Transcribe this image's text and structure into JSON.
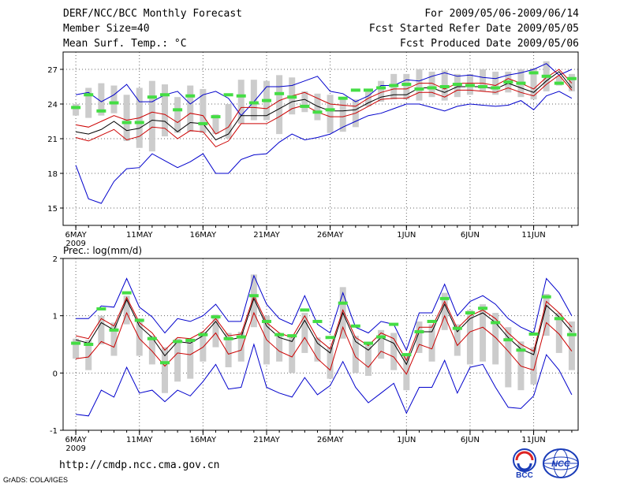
{
  "header": {
    "title": "DERF/NCC/BCC Monthly Forecast",
    "member_size": "Member Size=40",
    "variable": "Mean Surf. Temp.: °C",
    "fcst_range": "For 2009/05/06-2009/06/14",
    "start_date": "Fcst Started Refer Date 2009/05/05",
    "produced_date": "Fcst Produced Date 2009/05/06"
  },
  "footer": {
    "url": "http://cmdp.ncc.cma.gov.cn",
    "grads_credit": "GrADS: COLA/IGES",
    "logo_bcc": "BCC",
    "logo_ncc": "NCC"
  },
  "colors": {
    "ensemble_range": "#0000cc",
    "spread": "#cc0000",
    "mean": "#000000",
    "box": "#cccccc",
    "observed": "#44dd44",
    "grid": "#666666"
  },
  "chart_data": [
    {
      "type": "line",
      "title": "Mean Surf. Temp.: °C",
      "x_start_day": "2009-05-06",
      "n_days": 40,
      "xtick_labels": [
        {
          "day": 0,
          "label": "6MAY",
          "sub": "2009"
        },
        {
          "day": 5,
          "label": "11MAY"
        },
        {
          "day": 10,
          "label": "16MAY"
        },
        {
          "day": 15,
          "label": "21MAY"
        },
        {
          "day": 20,
          "label": "26MAY"
        },
        {
          "day": 26,
          "label": "1JUN"
        },
        {
          "day": 31,
          "label": "6JUN"
        },
        {
          "day": 36,
          "label": "11JUN"
        }
      ],
      "ylim": [
        13.5,
        28.5
      ],
      "yticks": [
        15,
        18,
        21,
        24,
        27
      ],
      "grid": true,
      "series": [
        {
          "name": "ensemble max",
          "role": "max",
          "values": [
            24.8,
            25.0,
            24.2,
            24.8,
            25.7,
            24.2,
            24.2,
            24.8,
            25.1,
            24.0,
            24.8,
            25.1,
            24.5,
            23.0,
            24.2,
            25.5,
            25.5,
            25.6,
            26.0,
            26.4,
            25.1,
            24.9,
            24.2,
            24.7,
            25.6,
            25.6,
            26.1,
            26.0,
            26.4,
            26.7,
            26.4,
            26.5,
            26.3,
            26.2,
            26.5,
            26.7,
            27.0,
            27.5,
            26.5,
            27.0
          ]
        },
        {
          "name": "upper spread",
          "role": "spread",
          "values": [
            22.2,
            22.0,
            22.5,
            23.0,
            22.6,
            22.8,
            23.3,
            23.1,
            22.4,
            23.2,
            23.0,
            21.4,
            22.0,
            23.7,
            23.7,
            23.6,
            24.3,
            24.7,
            25.0,
            24.5,
            24.0,
            23.9,
            23.8,
            24.5,
            25.0,
            25.3,
            25.3,
            25.8,
            25.8,
            25.3,
            25.8,
            25.8,
            25.8,
            25.6,
            26.2,
            25.8,
            25.3,
            26.3,
            27.0,
            25.8
          ]
        },
        {
          "name": "ensemble mean",
          "role": "mean",
          "values": [
            21.6,
            21.4,
            21.8,
            22.5,
            21.7,
            21.9,
            22.6,
            22.5,
            21.6,
            22.4,
            22.3,
            20.9,
            21.4,
            23.0,
            23.0,
            23.0,
            23.6,
            24.2,
            24.4,
            23.8,
            23.4,
            23.4,
            23.5,
            24.1,
            24.6,
            24.8,
            24.8,
            25.4,
            25.4,
            25.0,
            25.5,
            25.5,
            25.5,
            25.3,
            25.8,
            25.4,
            25.0,
            26.0,
            26.8,
            25.4
          ]
        },
        {
          "name": "lower spread",
          "role": "spread",
          "values": [
            21.1,
            20.8,
            21.3,
            21.8,
            20.9,
            21.2,
            22.0,
            21.9,
            21.0,
            21.7,
            21.6,
            20.3,
            20.8,
            22.3,
            22.3,
            22.3,
            22.9,
            23.6,
            23.9,
            23.3,
            22.9,
            22.9,
            23.2,
            23.8,
            24.4,
            24.5,
            24.5,
            25.0,
            25.0,
            24.6,
            25.2,
            25.2,
            25.1,
            25.0,
            25.4,
            25.0,
            24.7,
            25.7,
            26.5,
            25.2
          ]
        },
        {
          "name": "ensemble min",
          "role": "min",
          "values": [
            18.7,
            15.8,
            15.4,
            17.3,
            18.4,
            18.5,
            19.7,
            19.1,
            18.5,
            19.0,
            19.7,
            18.0,
            18.0,
            19.2,
            19.6,
            19.7,
            20.7,
            21.4,
            20.9,
            21.1,
            21.4,
            22.0,
            22.5,
            23.0,
            23.2,
            23.6,
            24.0,
            24.0,
            23.7,
            23.4,
            23.8,
            24.0,
            23.9,
            23.8,
            23.9,
            24.3,
            23.5,
            24.7,
            25.1,
            24.5
          ]
        }
      ],
      "boxes": {
        "low": [
          23.0,
          22.8,
          23.0,
          23.2,
          20.8,
          20.2,
          19.9,
          21.2,
          21.5,
          21.6,
          21.5,
          21.4,
          21.0,
          22.3,
          22.6,
          22.6,
          21.4,
          23.1,
          23.3,
          22.6,
          21.5,
          21.6,
          22.0,
          23.8,
          24.2,
          24.4,
          24.4,
          24.3,
          24.6,
          24.3,
          24.6,
          24.8,
          25.1,
          24.8,
          25.0,
          24.6,
          24.4,
          25.1,
          25.6,
          25.1
        ],
        "high": [
          24.0,
          25.4,
          25.8,
          25.6,
          24.8,
          25.4,
          26.0,
          25.7,
          24.6,
          25.6,
          25.3,
          23.1,
          24.0,
          26.1,
          26.1,
          26.0,
          26.5,
          26.3,
          25.1,
          24.9,
          24.8,
          24.5,
          24.4,
          25.3,
          26.0,
          26.6,
          26.6,
          27.0,
          26.8,
          26.9,
          26.6,
          26.6,
          27.0,
          26.8,
          26.8,
          27.0,
          27.1,
          27.7,
          26.4,
          26.6
        ]
      },
      "observed": [
        23.7,
        24.8,
        23.4,
        24.1,
        22.4,
        22.4,
        24.6,
        24.8,
        23.5,
        24.7,
        22.3,
        22.9,
        24.8,
        24.7,
        24.1,
        24.3,
        24.9,
        24.6,
        23.8,
        23.3,
        23.5,
        24.5,
        25.2,
        25.2,
        25.4,
        25.6,
        25.7,
        25.3,
        25.4,
        25.5,
        25.7,
        25.6,
        25.5,
        25.4,
        25.9,
        25.8,
        26.7,
        26.4,
        25.8,
        26.2
      ]
    },
    {
      "type": "line",
      "title": "Prec.: log(mm/d)",
      "x_start_day": "2009-05-06",
      "n_days": 40,
      "xtick_labels": [
        {
          "day": 0,
          "label": "6MAY",
          "sub": "2009"
        },
        {
          "day": 5,
          "label": "11MAY"
        },
        {
          "day": 10,
          "label": "16MAY"
        },
        {
          "day": 15,
          "label": "21MAY"
        },
        {
          "day": 20,
          "label": "26MAY"
        },
        {
          "day": 26,
          "label": "1JUN"
        },
        {
          "day": 31,
          "label": "6JUN"
        },
        {
          "day": 36,
          "label": "11JUN"
        }
      ],
      "ylim": [
        -1,
        2
      ],
      "yticks": [
        -1,
        0,
        1,
        2
      ],
      "grid": true,
      "series": [
        {
          "name": "ensemble max",
          "role": "max",
          "values": [
            0.95,
            0.95,
            1.17,
            1.15,
            1.65,
            1.15,
            0.98,
            0.7,
            0.95,
            0.9,
            1.0,
            1.2,
            0.9,
            0.9,
            1.7,
            1.2,
            0.95,
            0.85,
            1.35,
            0.85,
            0.7,
            1.4,
            0.8,
            0.7,
            0.9,
            0.85,
            0.4,
            1.05,
            1.05,
            1.55,
            1.0,
            1.25,
            1.35,
            1.2,
            0.95,
            0.8,
            0.7,
            1.65,
            1.4,
            1.0
          ]
        },
        {
          "name": "upper spread",
          "role": "spread",
          "values": [
            0.65,
            0.6,
            0.95,
            0.82,
            1.32,
            0.88,
            0.7,
            0.4,
            0.62,
            0.6,
            0.72,
            0.95,
            0.65,
            0.68,
            1.35,
            0.88,
            0.7,
            0.62,
            1.0,
            0.6,
            0.42,
            1.1,
            0.62,
            0.48,
            0.7,
            0.6,
            0.22,
            0.8,
            0.8,
            1.25,
            0.78,
            1.0,
            1.1,
            0.95,
            0.7,
            0.5,
            0.38,
            1.25,
            1.05,
            0.8
          ]
        },
        {
          "name": "ensemble mean",
          "role": "mean",
          "values": [
            0.58,
            0.52,
            0.88,
            0.75,
            1.28,
            0.82,
            0.62,
            0.3,
            0.55,
            0.52,
            0.65,
            0.9,
            0.58,
            0.62,
            1.3,
            0.82,
            0.62,
            0.55,
            0.92,
            0.52,
            0.35,
            1.05,
            0.55,
            0.4,
            0.62,
            0.52,
            0.15,
            0.72,
            0.72,
            1.2,
            0.72,
            0.95,
            1.05,
            0.88,
            0.62,
            0.42,
            0.32,
            1.18,
            0.98,
            0.72
          ]
        },
        {
          "name": "lower spread",
          "role": "spread",
          "values": [
            0.25,
            0.28,
            0.55,
            0.45,
            1.05,
            0.6,
            0.38,
            0.12,
            0.35,
            0.32,
            0.45,
            0.7,
            0.33,
            0.4,
            1.05,
            0.58,
            0.38,
            0.28,
            0.62,
            0.25,
            0.05,
            0.8,
            0.28,
            0.1,
            0.38,
            0.28,
            -0.02,
            0.5,
            0.42,
            1.0,
            0.48,
            0.72,
            0.8,
            0.62,
            0.38,
            0.12,
            0.05,
            0.88,
            0.68,
            0.38
          ]
        },
        {
          "name": "ensemble min",
          "role": "min",
          "values": [
            -0.72,
            -0.75,
            -0.3,
            -0.42,
            0.1,
            -0.35,
            -0.3,
            -0.5,
            -0.3,
            -0.4,
            -0.15,
            0.15,
            -0.28,
            -0.25,
            0.5,
            -0.25,
            -0.35,
            -0.42,
            -0.08,
            -0.38,
            -0.22,
            0.2,
            -0.25,
            -0.52,
            -0.35,
            -0.18,
            -0.7,
            -0.25,
            -0.25,
            0.22,
            -0.35,
            0.1,
            0.15,
            -0.25,
            -0.6,
            -0.62,
            -0.4,
            0.32,
            0.05,
            -0.38
          ]
        }
      ],
      "boxes": {
        "low": [
          0.25,
          0.05,
          0.5,
          0.3,
          0.85,
          0.3,
          0.15,
          -0.35,
          -0.15,
          -0.1,
          0.2,
          0.45,
          0.1,
          0.2,
          0.8,
          0.15,
          0.2,
          0.0,
          0.35,
          0.2,
          -0.1,
          0.6,
          0.0,
          -0.05,
          0.25,
          0.05,
          -0.3,
          0.35,
          0.2,
          0.75,
          0.3,
          0.15,
          0.2,
          0.15,
          -0.25,
          -0.3,
          -0.2,
          0.65,
          0.35,
          0.05
        ],
        "high": [
          0.6,
          0.58,
          1.0,
          0.88,
          1.35,
          0.95,
          0.65,
          0.45,
          0.6,
          0.6,
          0.72,
          1.02,
          0.7,
          0.72,
          1.72,
          1.0,
          0.7,
          0.65,
          1.05,
          0.62,
          0.45,
          1.5,
          0.65,
          0.5,
          0.75,
          0.7,
          0.3,
          0.9,
          0.85,
          1.4,
          0.85,
          1.1,
          1.2,
          1.05,
          0.8,
          0.55,
          0.45,
          1.38,
          1.05,
          0.9
        ]
      },
      "observed": [
        0.52,
        0.5,
        1.12,
        0.75,
        1.4,
        0.92,
        0.6,
        0.18,
        0.55,
        0.57,
        0.67,
        0.98,
        0.6,
        0.63,
        1.35,
        0.9,
        0.67,
        0.65,
        1.1,
        0.9,
        0.62,
        1.22,
        0.82,
        0.52,
        0.63,
        0.85,
        0.32,
        0.72,
        0.9,
        1.3,
        0.78,
        1.05,
        1.13,
        0.88,
        0.58,
        0.4,
        0.68,
        1.33,
        0.95,
        0.67
      ]
    }
  ]
}
